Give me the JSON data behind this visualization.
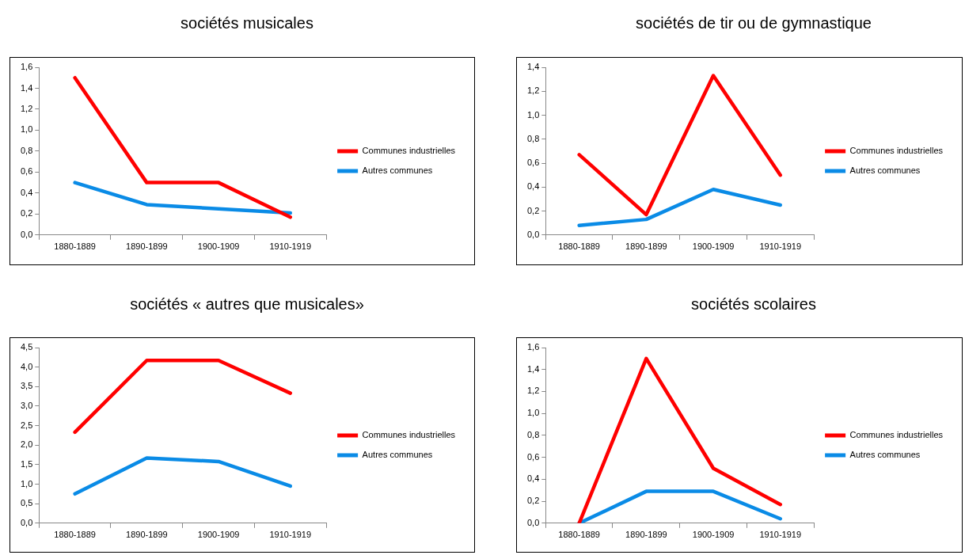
{
  "chart_data": [
    {
      "type": "line",
      "title": "sociétés musicales",
      "categories": [
        "1880-1889",
        "1890-1899",
        "1900-1909",
        "1910-1919"
      ],
      "ylim": [
        0,
        1.6
      ],
      "yticks": [
        {
          "value": 0,
          "label": "0,0"
        },
        {
          "value": 0.2,
          "label": "0,2"
        },
        {
          "value": 0.4,
          "label": "0,4"
        },
        {
          "value": 0.6,
          "label": "0,6"
        },
        {
          "value": 0.8,
          "label": "0,8"
        },
        {
          "value": 1,
          "label": "1,0"
        },
        {
          "value": 1.2,
          "label": "1,2"
        },
        {
          "value": 1.4,
          "label": "1,4"
        },
        {
          "value": 1.6,
          "label": "1,6"
        }
      ],
      "grid": false,
      "legend": "right",
      "marker": "none",
      "series": [
        {
          "name": "Communes industrielles",
          "color": "#ff0000",
          "values": [
            1.5,
            0.5,
            0.5,
            0.17
          ]
        },
        {
          "name": "Autres communes",
          "color": "#0a8be6",
          "values": [
            0.5,
            0.29,
            0.25,
            0.21
          ]
        }
      ]
    },
    {
      "type": "line",
      "title": "sociétés de tir ou de gymnastique",
      "categories": [
        "1880-1889",
        "1890-1899",
        "1900-1909",
        "1910-1919"
      ],
      "ylim": [
        0,
        1.4
      ],
      "yticks": [
        {
          "value": 0,
          "label": "0,0"
        },
        {
          "value": 0.2,
          "label": "0,2"
        },
        {
          "value": 0.4,
          "label": "0,4"
        },
        {
          "value": 0.6,
          "label": "0,6"
        },
        {
          "value": 0.8,
          "label": "0,8"
        },
        {
          "value": 1,
          "label": "1,0"
        },
        {
          "value": 1.2,
          "label": "1,2"
        },
        {
          "value": 1.4,
          "label": "1,4"
        }
      ],
      "grid": false,
      "legend": "right",
      "marker": "none",
      "series": [
        {
          "name": "Communes industrielles",
          "color": "#ff0000",
          "values": [
            0.67,
            0.17,
            1.33,
            0.5
          ]
        },
        {
          "name": "Autres communes",
          "color": "#0a8be6",
          "values": [
            0.08,
            0.13,
            0.38,
            0.25
          ]
        }
      ]
    },
    {
      "type": "line",
      "title": "sociétés « autres que musicales»",
      "categories": [
        "1880-1889",
        "1890-1899",
        "1900-1909",
        "1910-1919"
      ],
      "ylim": [
        0,
        4.5
      ],
      "yticks": [
        {
          "value": 0,
          "label": "0,0"
        },
        {
          "value": 0.5,
          "label": "0,5"
        },
        {
          "value": 1,
          "label": "1,0"
        },
        {
          "value": 1.5,
          "label": "1,5"
        },
        {
          "value": 2,
          "label": "2,0"
        },
        {
          "value": 2.5,
          "label": "2,5"
        },
        {
          "value": 3,
          "label": "3,0"
        },
        {
          "value": 3.5,
          "label": "3,5"
        },
        {
          "value": 4,
          "label": "4,0"
        },
        {
          "value": 4.5,
          "label": "4,5"
        }
      ],
      "grid": false,
      "legend": "right",
      "marker": "none",
      "series": [
        {
          "name": "Communes industrielles",
          "color": "#ff0000",
          "values": [
            2.33,
            4.17,
            4.17,
            3.33
          ]
        },
        {
          "name": "Autres communes",
          "color": "#0a8be6",
          "values": [
            0.75,
            1.67,
            1.58,
            0.95
          ]
        }
      ]
    },
    {
      "type": "line",
      "title": "sociétés scolaires",
      "categories": [
        "1880-1889",
        "1890-1899",
        "1900-1909",
        "1910-1919"
      ],
      "ylim": [
        0,
        1.6
      ],
      "yticks": [
        {
          "value": 0,
          "label": "0,0"
        },
        {
          "value": 0.2,
          "label": "0,2"
        },
        {
          "value": 0.4,
          "label": "0,4"
        },
        {
          "value": 0.6,
          "label": "0,6"
        },
        {
          "value": 0.8,
          "label": "0,8"
        },
        {
          "value": 1,
          "label": "1,0"
        },
        {
          "value": 1.2,
          "label": "1,2"
        },
        {
          "value": 1.4,
          "label": "1,4"
        },
        {
          "value": 1.6,
          "label": "1,6"
        }
      ],
      "grid": false,
      "legend": "right",
      "marker": "none",
      "series": [
        {
          "name": "Communes industrielles",
          "color": "#ff0000",
          "values": [
            0,
            1.5,
            0.5,
            0.17
          ]
        },
        {
          "name": "Autres communes",
          "color": "#0a8be6",
          "values": [
            0,
            0.29,
            0.29,
            0.04
          ]
        }
      ]
    }
  ]
}
